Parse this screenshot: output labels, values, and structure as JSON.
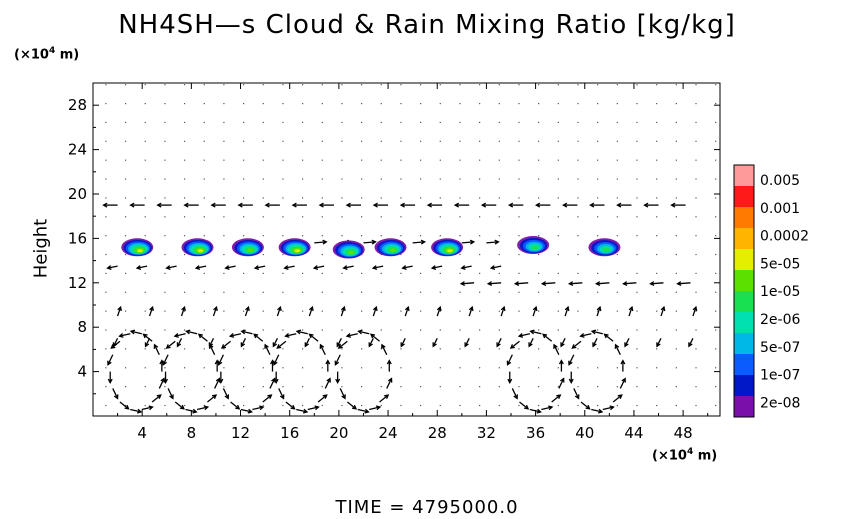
{
  "title": "NH4SH—s Cloud & Rain Mixing Ratio [kg/kg]",
  "y_unit": "(×10⁴ m)",
  "x_unit": "(×10⁴ m)",
  "footer": "TIME  =  4795000.0",
  "chart_data": {
    "type": "heatmap",
    "title": "NH4SH—s Cloud & Rain Mixing Ratio [kg/kg]",
    "xlabel": "",
    "ylabel": "Height",
    "xlim": [
      0,
      51
    ],
    "ylim": [
      0,
      30
    ],
    "xticks": [
      "4",
      "8",
      "12",
      "16",
      "20",
      "24",
      "28",
      "32",
      "36",
      "40",
      "44",
      "48"
    ],
    "yticks": [
      "4",
      "8",
      "12",
      "16",
      "20",
      "24",
      "28"
    ],
    "colorbar": {
      "labels": [
        "0.005",
        "0.001",
        "0.0002",
        "5e-05",
        "1e-05",
        "2e-06",
        "5e-07",
        "1e-07",
        "2e-08"
      ],
      "colors": [
        "#ff9a9a",
        "#ff1a1a",
        "#ff7a00",
        "#ffb400",
        "#e6ee00",
        "#5ce000",
        "#18e050",
        "#00e0b0",
        "#00b8e8",
        "#0a5cff",
        "#0018c8",
        "#7a10a8"
      ]
    },
    "cloud_cells": [
      {
        "x": 3.6,
        "y": 15.2,
        "peak": "5e-05"
      },
      {
        "x": 8.5,
        "y": 15.2,
        "peak": "5e-05"
      },
      {
        "x": 12.6,
        "y": 15.2,
        "peak": "1e-05"
      },
      {
        "x": 16.4,
        "y": 15.2,
        "peak": "5e-05"
      },
      {
        "x": 20.8,
        "y": 15.0,
        "peak": "1e-05"
      },
      {
        "x": 24.2,
        "y": 15.2,
        "peak": "1e-05"
      },
      {
        "x": 28.8,
        "y": 15.2,
        "peak": "5e-05"
      },
      {
        "x": 35.8,
        "y": 15.4,
        "peak": "2e-06"
      },
      {
        "x": 41.6,
        "y": 15.2,
        "peak": "2e-06"
      }
    ],
    "grid": false,
    "legend": "right colorbar"
  }
}
